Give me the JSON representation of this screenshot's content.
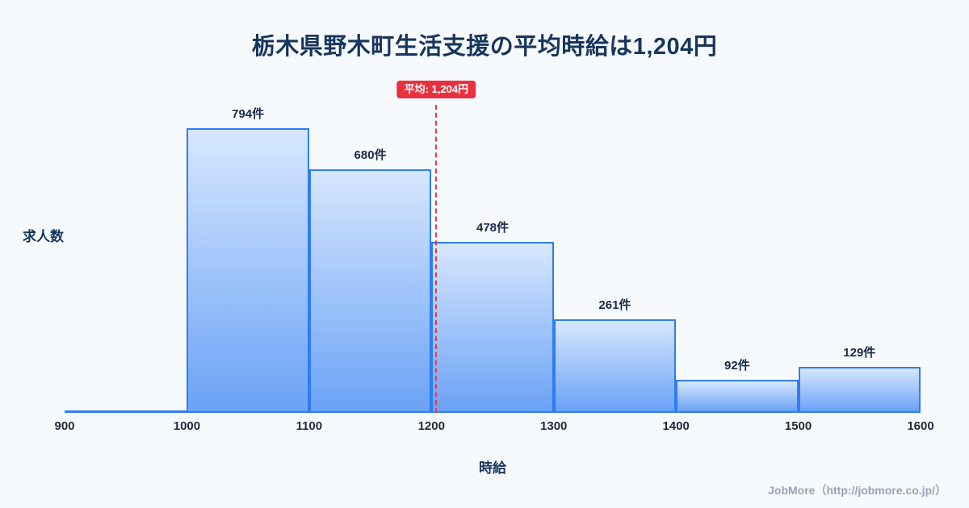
{
  "title": "栃木県野木町生活支援の平均時給は1,204円",
  "footer": "JobMore（http://jobmore.co.jp/）",
  "chart_data": {
    "type": "bar",
    "title": "栃木県野木町生活支援の平均時給は1,204円",
    "xlabel": "時給",
    "ylabel": "求人数",
    "xlim": [
      900,
      1600
    ],
    "ylim": [
      0,
      860
    ],
    "x_ticks": [
      900,
      1000,
      1100,
      1200,
      1300,
      1400,
      1500,
      1600
    ],
    "grid": false,
    "legend": false,
    "bins": [
      {
        "start": 900,
        "end": 1000,
        "count": 0,
        "label": ""
      },
      {
        "start": 1000,
        "end": 1100,
        "count": 794,
        "label": "794件"
      },
      {
        "start": 1100,
        "end": 1200,
        "count": 680,
        "label": "680件"
      },
      {
        "start": 1200,
        "end": 1300,
        "count": 478,
        "label": "478件"
      },
      {
        "start": 1300,
        "end": 1400,
        "count": 261,
        "label": "261件"
      },
      {
        "start": 1400,
        "end": 1500,
        "count": 92,
        "label": "92件"
      },
      {
        "start": 1500,
        "end": 1600,
        "count": 129,
        "label": "129件"
      }
    ],
    "average": {
      "value": 1204,
      "label": "平均: 1,204円"
    }
  },
  "colors": {
    "background": "#f7fafd",
    "title": "#17365d",
    "bar_border": "#2e7cf6",
    "bar_fill_top": "#d7e7fe",
    "bar_fill_bottom": "#6aa2f6",
    "average_line": "#e63946",
    "badge_bg": "#e8313f",
    "badge_text": "#ffffff",
    "axis_text": "#1f2a3d",
    "footer_text": "#98a2b3"
  }
}
